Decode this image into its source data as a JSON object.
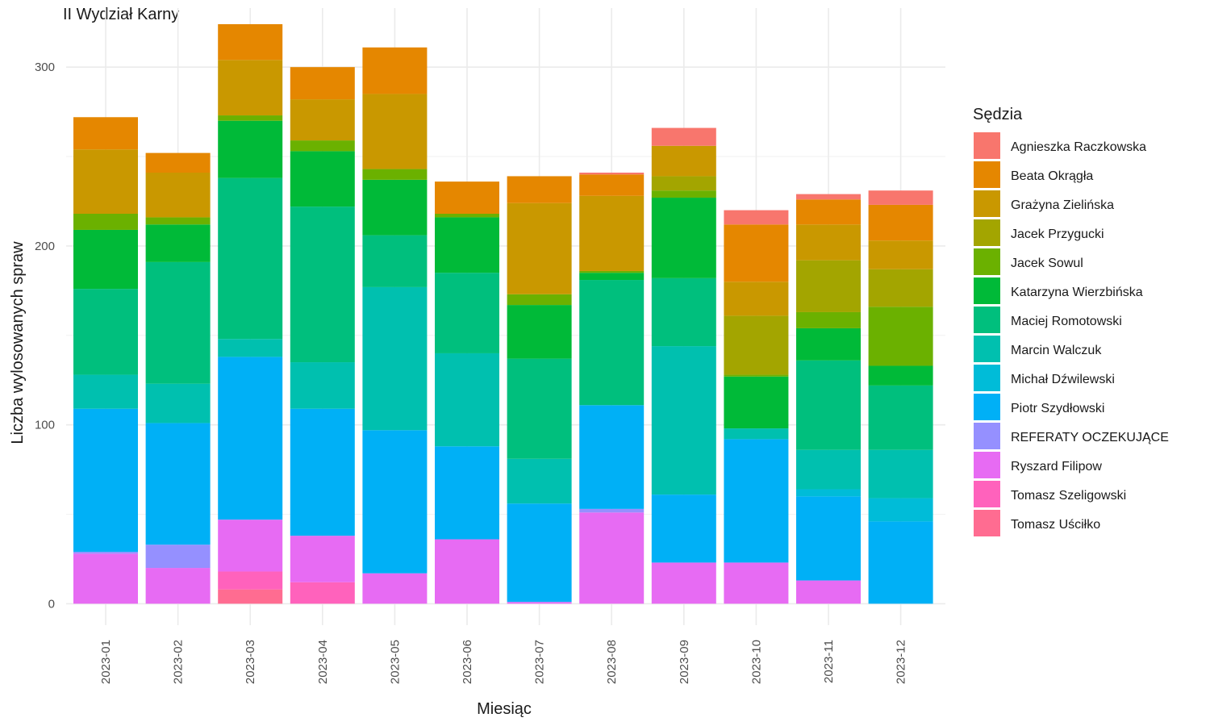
{
  "chart_data": {
    "type": "bar",
    "stacked": true,
    "title": "II Wydział Karny",
    "xlabel": "Miesiąc",
    "ylabel": "Liczba wylosowanych spraw",
    "ylim": [
      -12,
      333
    ],
    "yticks": [
      0,
      100,
      200,
      300
    ],
    "grid": true,
    "legend_title": "Sędzia",
    "legend_position": "right",
    "categories": [
      "2023-01",
      "2023-02",
      "2023-03",
      "2023-04",
      "2023-05",
      "2023-06",
      "2023-07",
      "2023-08",
      "2023-09",
      "2023-10",
      "2023-11",
      "2023-12"
    ],
    "series": [
      {
        "name": "Agnieszka Raczkowska",
        "color": "#F8766D",
        "values": [
          0,
          0,
          0,
          0,
          0,
          0,
          0,
          1,
          10,
          8,
          3,
          8
        ]
      },
      {
        "name": "Beata Okrągła",
        "color": "#E58700",
        "values": [
          18,
          11,
          20,
          18,
          26,
          18,
          15,
          12,
          0,
          32,
          14,
          20
        ]
      },
      {
        "name": "Grażyna Zielińska",
        "color": "#C99800",
        "values": [
          36,
          25,
          31,
          23,
          42,
          0,
          51,
          42,
          17,
          19,
          20,
          16
        ]
      },
      {
        "name": "Jacek Przygucki",
        "color": "#A3A500",
        "values": [
          0,
          0,
          0,
          0,
          0,
          0,
          0,
          0,
          8,
          33,
          29,
          21
        ]
      },
      {
        "name": "Jacek Sowul",
        "color": "#6BB100",
        "values": [
          9,
          4,
          3,
          6,
          6,
          2,
          6,
          1,
          4,
          1,
          9,
          33
        ]
      },
      {
        "name": "Katarzyna Wierzbińska",
        "color": "#00BA38",
        "values": [
          33,
          21,
          32,
          31,
          31,
          31,
          30,
          4,
          45,
          29,
          18,
          11
        ]
      },
      {
        "name": "Maciej Romotowski",
        "color": "#00BF7D",
        "values": [
          48,
          68,
          90,
          87,
          29,
          45,
          56,
          70,
          38,
          0,
          50,
          36
        ]
      },
      {
        "name": "Marcin Walczuk",
        "color": "#00C0AF",
        "values": [
          19,
          22,
          10,
          26,
          80,
          52,
          25,
          0,
          83,
          6,
          22,
          27
        ]
      },
      {
        "name": "Michał Dźwilewski",
        "color": "#00BCD8",
        "values": [
          0,
          0,
          0,
          0,
          0,
          0,
          0,
          0,
          0,
          0,
          4,
          13
        ]
      },
      {
        "name": "Piotr Szydłowski",
        "color": "#00B0F6",
        "values": [
          80,
          68,
          91,
          71,
          80,
          52,
          55,
          58,
          38,
          69,
          47,
          46
        ]
      },
      {
        "name": "REFERATY OCZEKUJĄCE",
        "color": "#9590FF",
        "values": [
          1,
          13,
          0,
          0,
          0,
          0,
          0,
          2,
          0,
          0,
          0,
          0
        ]
      },
      {
        "name": "Ryszard Filipow",
        "color": "#E76BF3",
        "values": [
          28,
          20,
          29,
          26,
          17,
          36,
          1,
          51,
          23,
          23,
          13,
          0
        ]
      },
      {
        "name": "Tomasz Szeligowski",
        "color": "#FF62BC",
        "values": [
          0,
          0,
          10,
          12,
          0,
          0,
          0,
          0,
          0,
          0,
          0,
          0
        ]
      },
      {
        "name": "Tomasz Uściłko",
        "color": "#FF6C91",
        "values": [
          0,
          0,
          8,
          0,
          0,
          0,
          0,
          0,
          0,
          0,
          0,
          0
        ]
      }
    ]
  }
}
